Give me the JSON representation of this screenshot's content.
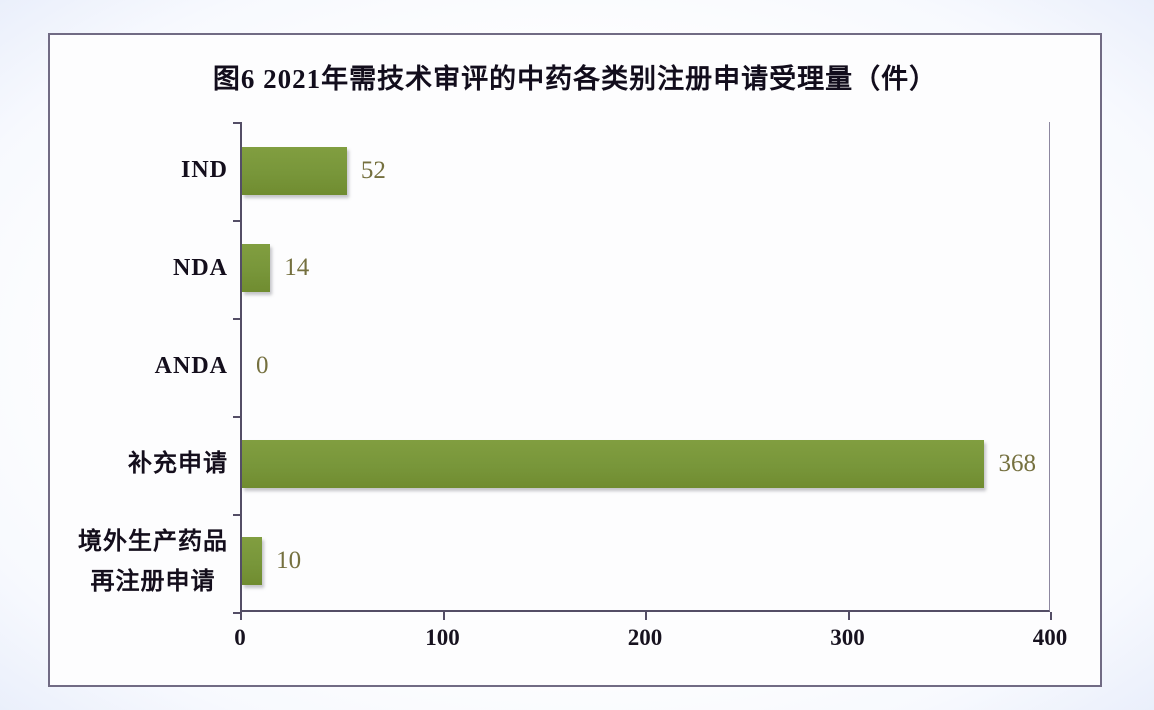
{
  "chart_data": {
    "type": "bar",
    "orientation": "horizontal",
    "title": "图6 2021年需技术审评的中药各类别注册申请受理量（件）",
    "categories": [
      "IND",
      "NDA",
      "ANDA",
      "补充申请",
      "境外生产药品\n再注册申请"
    ],
    "values": [
      52,
      14,
      0,
      368,
      10
    ],
    "xlabel": "",
    "ylabel": "",
    "xlim": [
      0,
      400
    ],
    "xticks": [
      0,
      100,
      200,
      300,
      400
    ],
    "grid": false,
    "legend": null,
    "data_labels_shown": true,
    "colors": {
      "bar": "#78963a",
      "value_label": "#75703f",
      "axis_line": "#544e66",
      "frame_border": "#716b84",
      "text": "#140e1c",
      "plot_background": "#fdfdfe"
    }
  }
}
